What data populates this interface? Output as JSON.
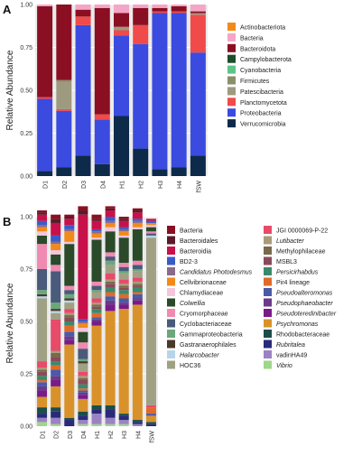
{
  "chart_data": [
    {
      "type": "bar",
      "panel_label": "A",
      "ylabel": "Relative Abundance",
      "ylim": [
        0,
        1
      ],
      "yticks": [
        "0.00",
        "0.25",
        "0.50",
        "0.75",
        "1.00"
      ],
      "categories": [
        "D1",
        "D2",
        "D3",
        "D4",
        "H1",
        "H2",
        "H3",
        "H4",
        "fSW"
      ],
      "legend_placement": "right",
      "series": [
        {
          "name": "Verrucomicrobia",
          "color": "#0d2a4a",
          "values": [
            0.03,
            0.05,
            0.12,
            0.07,
            0.35,
            0.16,
            0.04,
            0.05,
            0.12
          ]
        },
        {
          "name": "Proteobacteria",
          "color": "#3b4be0",
          "values": [
            0.42,
            0.33,
            0.76,
            0.26,
            0.47,
            0.61,
            0.91,
            0.9,
            0.6
          ]
        },
        {
          "name": "Planctomycetota",
          "color": "#f04a4a",
          "values": [
            0.01,
            0.01,
            0.05,
            0.03,
            0.03,
            0.11,
            0.01,
            0.01,
            0.22
          ]
        },
        {
          "name": "Patescibacteria",
          "color": "#9e9a80",
          "values": [
            0.0,
            0.16,
            0.0,
            0.0,
            0.02,
            0.0,
            0.0,
            0.0,
            0.01
          ]
        },
        {
          "name": "Firmicutes",
          "color": "#8a8f6a",
          "values": [
            0.0,
            0.01,
            0.0,
            0.0,
            0.0,
            0.0,
            0.0,
            0.0,
            0.0
          ]
        },
        {
          "name": "Cyanobacteria",
          "color": "#5fc48a",
          "values": [
            0.0,
            0.0,
            0.0,
            0.0,
            0.0,
            0.0,
            0.0,
            0.0,
            0.0
          ]
        },
        {
          "name": "Campylobacterota",
          "color": "#1e4d2b",
          "values": [
            0.0,
            0.0,
            0.0,
            0.0,
            0.0,
            0.0,
            0.0,
            0.0,
            0.0
          ]
        },
        {
          "name": "Bacteroidota",
          "color": "#8b0f22",
          "values": [
            0.53,
            0.44,
            0.04,
            0.62,
            0.08,
            0.1,
            0.02,
            0.03,
            0.01
          ]
        },
        {
          "name": "Bacteria",
          "color": "#f4a6c6",
          "values": [
            0.01,
            0.0,
            0.03,
            0.02,
            0.05,
            0.02,
            0.02,
            0.01,
            0.04
          ]
        },
        {
          "name": "Actinobacteriota",
          "color": "#f28a1a",
          "values": [
            0.0,
            0.0,
            0.0,
            0.0,
            0.0,
            0.0,
            0.0,
            0.0,
            0.0
          ]
        }
      ],
      "legend": [
        "Actinobacteriota",
        "Bacteria",
        "Bacteroidota",
        "Campylobacterota",
        "Cyanobacteria",
        "Firmicutes",
        "Patescibacteria",
        "Planctomycetota",
        "Proteobacteria",
        "Verrucomicrobia"
      ]
    },
    {
      "type": "bar",
      "panel_label": "B",
      "ylabel": "Relative Abundance",
      "ylim": [
        0,
        1
      ],
      "yticks": [
        "0.00",
        "0.25",
        "0.50",
        "0.75",
        "1.00"
      ],
      "categories": [
        "D1",
        "D2",
        "D3",
        "D4",
        "H1",
        "H2",
        "H3",
        "H4",
        "fSW"
      ],
      "legend_placement": "right",
      "series": [
        {
          "name": "Vibrio",
          "color": "#9ed68a",
          "values": [
            0.02,
            0.01,
            0.0,
            0.01,
            0.01,
            0.01,
            0.01,
            0.0,
            0.0
          ]
        },
        {
          "name": "vadinHA49",
          "color": "#9b82c4",
          "values": [
            0.02,
            0.03,
            0.0,
            0.02,
            0.05,
            0.03,
            0.02,
            0.01,
            0.0
          ]
        },
        {
          "name": "Rubritalea",
          "color": "#2a2a7a",
          "values": [
            0.02,
            0.03,
            0.03,
            0.02,
            0.02,
            0.04,
            0.02,
            0.01,
            0.01
          ]
        },
        {
          "name": "Rhodobacteraceae",
          "color": "#1c4d4a",
          "values": [
            0.03,
            0.02,
            0.01,
            0.02,
            0.02,
            0.02,
            0.01,
            0.01,
            0.01
          ]
        },
        {
          "name": "Psychromonas",
          "color": "#d9922a",
          "values": [
            0.05,
            0.1,
            0.35,
            0.06,
            0.38,
            0.45,
            0.5,
            0.55,
            0.03
          ]
        },
        {
          "name": "Pseudoteredinibacter",
          "color": "#7a1a8a",
          "values": [
            0.03,
            0.03,
            0.02,
            0.02,
            0.02,
            0.03,
            0.02,
            0.02,
            0.0
          ]
        },
        {
          "name": "Pseudophaeobacter",
          "color": "#6a3a8a",
          "values": [
            0.02,
            0.02,
            0.02,
            0.01,
            0.01,
            0.02,
            0.01,
            0.01,
            0.0
          ]
        },
        {
          "name": "Pseudoalteromonas",
          "color": "#4a5aa8",
          "values": [
            0.02,
            0.03,
            0.02,
            0.01,
            0.01,
            0.02,
            0.02,
            0.02,
            0.01
          ]
        },
        {
          "name": "Pir4 lineage",
          "color": "#e06a2a",
          "values": [
            0.01,
            0.02,
            0.03,
            0.01,
            0.02,
            0.02,
            0.02,
            0.01,
            0.03
          ]
        },
        {
          "name": "Persicirhabdus",
          "color": "#3a8a6a",
          "values": [
            0.02,
            0.02,
            0.02,
            0.02,
            0.02,
            0.02,
            0.02,
            0.02,
            0.0
          ]
        },
        {
          "name": "MSBL3",
          "color": "#8a4a5a",
          "values": [
            0.02,
            0.02,
            0.02,
            0.02,
            0.01,
            0.02,
            0.01,
            0.01,
            0.0
          ]
        },
        {
          "name": "Methylophilaceae",
          "color": "#7a6a4a",
          "values": [
            0.01,
            0.02,
            0.01,
            0.01,
            0.01,
            0.01,
            0.01,
            0.01,
            0.0
          ]
        },
        {
          "name": "Lutibacter",
          "color": "#a89a7a",
          "values": [
            0.01,
            0.01,
            0.01,
            0.01,
            0.01,
            0.01,
            0.01,
            0.01,
            0.0
          ]
        },
        {
          "name": "JGI 0000069-P-22",
          "color": "#e84a6a",
          "values": [
            0.03,
            0.15,
            0.02,
            0.02,
            0.02,
            0.03,
            0.02,
            0.02,
            0.01
          ]
        },
        {
          "name": "HOC36",
          "color": "#a0a084",
          "values": [
            0.3,
            0.03,
            0.03,
            0.04,
            0.03,
            0.04,
            0.03,
            0.03,
            0.8
          ]
        },
        {
          "name": "Halarcobacter",
          "color": "#b8d4e8",
          "values": [
            0.01,
            0.01,
            0.01,
            0.0,
            0.0,
            0.0,
            0.0,
            0.0,
            0.01
          ]
        },
        {
          "name": "Gastranaerophilales",
          "color": "#4a3a2a",
          "values": [
            0.01,
            0.01,
            0.01,
            0.01,
            0.0,
            0.0,
            0.0,
            0.0,
            0.0
          ]
        },
        {
          "name": "Gammaproteobacteria",
          "color": "#6aa87a",
          "values": [
            0.02,
            0.03,
            0.02,
            0.01,
            0.01,
            0.02,
            0.01,
            0.01,
            0.0
          ]
        },
        {
          "name": "Cyclobacteriaceae",
          "color": "#4a5a7a",
          "values": [
            0.1,
            0.15,
            0.02,
            0.05,
            0.02,
            0.02,
            0.02,
            0.02,
            0.01
          ]
        },
        {
          "name": "Cryomorphaceae",
          "color": "#f08ab0",
          "values": [
            0.12,
            0.03,
            0.02,
            0.03,
            0.02,
            0.02,
            0.02,
            0.02,
            0.01
          ]
        },
        {
          "name": "Colwellia",
          "color": "#2a4a2a",
          "values": [
            0.04,
            0.05,
            0.2,
            0.05,
            0.2,
            0.1,
            0.12,
            0.15,
            0.02
          ]
        },
        {
          "name": "Chlamydiaceae",
          "color": "#f4c6dc",
          "values": [
            0.02,
            0.02,
            0.01,
            0.02,
            0.01,
            0.02,
            0.01,
            0.01,
            0.01
          ]
        },
        {
          "name": "Cellvibrionaceae",
          "color": "#f28a1a",
          "values": [
            0.02,
            0.03,
            0.05,
            0.02,
            0.02,
            0.02,
            0.02,
            0.02,
            0.01
          ]
        },
        {
          "name": "Candidatus Photodesmus",
          "color": "#8a6a8a",
          "values": [
            0.01,
            0.01,
            0.01,
            0.01,
            0.01,
            0.01,
            0.01,
            0.01,
            0.0
          ]
        },
        {
          "name": "BD2-3",
          "color": "#3a5ac8",
          "values": [
            0.02,
            0.03,
            0.02,
            0.01,
            0.01,
            0.02,
            0.01,
            0.01,
            0.01
          ]
        },
        {
          "name": "Bacteroidia",
          "color": "#c8104a",
          "values": [
            0.03,
            0.06,
            0.03,
            0.5,
            0.04,
            0.03,
            0.03,
            0.03,
            0.01
          ]
        },
        {
          "name": "Bacteroidales",
          "color": "#5a1a2a",
          "values": [
            0.01,
            0.02,
            0.01,
            0.02,
            0.01,
            0.01,
            0.01,
            0.01,
            0.0
          ]
        },
        {
          "name": "Bacteria",
          "color": "#8b0f22",
          "values": [
            0.01,
            0.02,
            0.01,
            0.02,
            0.02,
            0.01,
            0.01,
            0.01,
            0.0
          ]
        }
      ],
      "legend": [
        [
          "Bacteria",
          "Bacteroidales",
          "Bacteroidia",
          "BD2-3",
          "Candidatus Photodesmus",
          "Cellvibrionaceae",
          "Chlamydiaceae",
          "Colwellia",
          "Cryomorphaceae",
          "Cyclobacteriaceae",
          "Gammaproteobacteria",
          "Gastranaerophilales",
          "Halarcobacter",
          "HOC36"
        ],
        [
          "JGI 0000069-P-22",
          "Lutibacter",
          "Methylophilaceae",
          "MSBL3",
          "Persicirhabdus",
          "Pir4 lineage",
          "Pseudoalteromonas",
          "Pseudophaeobacter",
          "Pseudoteredinibacter",
          "Psychromonas",
          "Rhodobacteraceae",
          "Rubritalea",
          "vadinHA49",
          "Vibrio"
        ]
      ],
      "italic_taxa": [
        "Candidatus Photodesmus",
        "Colwellia",
        "Halarcobacter",
        "Lutibacter",
        "Persicirhabdus",
        "Pseudoalteromonas",
        "Pseudophaeobacter",
        "Pseudoteredinibacter",
        "Psychromonas",
        "Rubritalea",
        "Vibrio"
      ]
    }
  ]
}
